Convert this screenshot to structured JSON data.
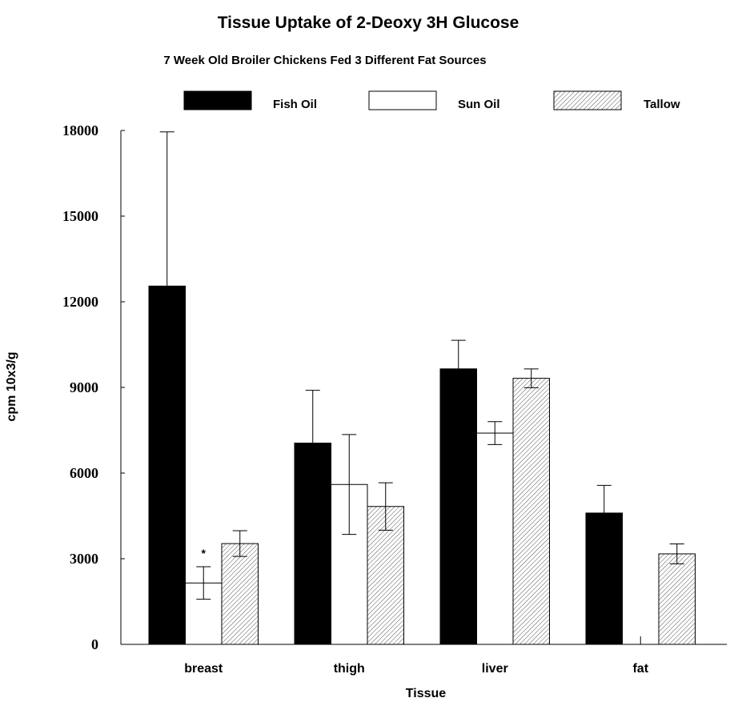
{
  "chart_data": {
    "type": "bar",
    "title": "Tissue Uptake of 2-Deoxy 3H Glucose",
    "subtitle": "7 Week Old Broiler Chickens Fed 3 Different Fat Sources",
    "xlabel": "Tissue",
    "ylabel": "cpm 10x3/g",
    "ylim": [
      0,
      18000
    ],
    "yticks": [
      "0",
      "3000",
      "6000",
      "9000",
      "12000",
      "15000",
      "18000"
    ],
    "ytick_values": [
      0,
      3000,
      6000,
      9000,
      12000,
      15000,
      18000
    ],
    "categories": [
      "breast",
      "thigh",
      "liver",
      "fat"
    ],
    "legend_position": "top",
    "grid": false,
    "series": [
      {
        "name": "Fish Oil",
        "fill": "#000000",
        "pattern": "solid",
        "values": [
          12550,
          7050,
          9650,
          4600
        ],
        "errors": [
          5400,
          1850,
          1000,
          970
        ]
      },
      {
        "name": "Sun Oil",
        "fill": "#ffffff",
        "pattern": "none",
        "values": [
          2150,
          5600,
          7400,
          0
        ],
        "errors": [
          570,
          1750,
          400,
          280
        ]
      },
      {
        "name": "Tallow",
        "fill": "#ffffff",
        "pattern": "hatched",
        "values": [
          3530,
          4830,
          9320,
          3170
        ],
        "errors": [
          450,
          830,
          330,
          350
        ]
      }
    ],
    "annotations": [
      {
        "text": "*",
        "category": "breast",
        "series": "Sun Oil"
      }
    ]
  }
}
